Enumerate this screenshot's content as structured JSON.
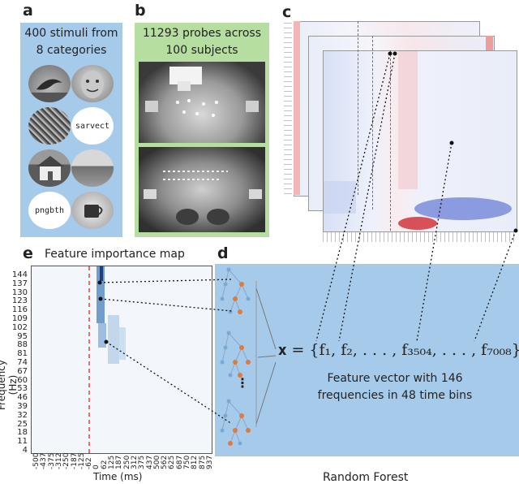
{
  "panels": {
    "a": "a",
    "b": "b",
    "c": "c",
    "d": "d",
    "e": "e"
  },
  "panel_a": {
    "caption": "400 stimuli from 8 categories",
    "word_stimuli": [
      "sarvect",
      "pngbth"
    ]
  },
  "panel_b": {
    "caption": "11293 probes across 100 subjects"
  },
  "panel_d": {
    "formula": "𝐱 = {f₁, f₂, . . . , f₃₅₀₄, . . . , f₇₀₀₈}",
    "feature_description": "Feature vector with 146 frequencies in 48 time bins",
    "classifier_label": "Random Forest",
    "ellipsis": "⋮"
  },
  "panel_e": {
    "title": "Feature importance map",
    "ylabel": "Frequency (Hz)",
    "xlabel": "Time (ms)",
    "y_ticks": [
      "144",
      "137",
      "130",
      "123",
      "116",
      "109",
      "102",
      "95",
      "88",
      "81",
      "74",
      "67",
      "60",
      "53",
      "46",
      "39",
      "32",
      "25",
      "18",
      "11",
      "4"
    ],
    "x_ticks": [
      "-500",
      "-437",
      "-375",
      "-312",
      "-250",
      "-187",
      "-125",
      "-62",
      "0",
      "62",
      "125",
      "187",
      "250",
      "312",
      "375",
      "437",
      "500",
      "562",
      "625",
      "687",
      "750",
      "812",
      "875",
      "937"
    ]
  },
  "colors": {
    "panel_a_bg": "#a6cbea",
    "panel_b_bg": "#b6dea0",
    "panel_d_bg": "#a6cbea",
    "onset_line": "#e0443c",
    "tree_node_orange": "#e07a3a",
    "tree_node_blue": "#7aa8d6"
  }
}
